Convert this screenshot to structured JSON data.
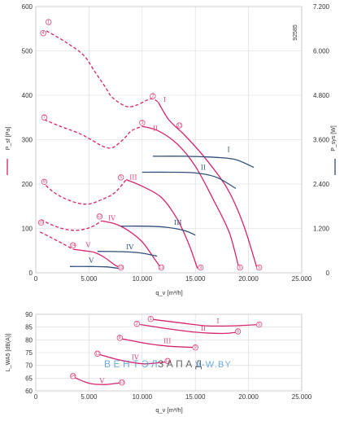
{
  "colors": {
    "pressure": "#d6246e",
    "power": "#2f4f7a",
    "grid": "#d9d9d9",
    "watermark_blue": "#3b8fd6",
    "watermark_grey": "#333333"
  },
  "watermark": {
    "part1": "ВЕНТЭЛ",
    "part2": "ЗАПАД",
    "part3": "V-W.BY"
  },
  "chart_data": [
    {
      "type": "line",
      "id": "pressure-power",
      "code": "92585",
      "xlabel": "q_v [m³/h]",
      "ylabel_left": "P_sf [Pa]",
      "ylabel_right": "P_sys [W]",
      "xlim": [
        0,
        25000
      ],
      "ylim_left": [
        0,
        600
      ],
      "ylim_right": [
        0,
        7200
      ],
      "x_ticks": [
        "0",
        "5.000",
        "10.000",
        "15.000",
        "20.000",
        "25.000"
      ],
      "y_ticks_left": [
        "0",
        "100",
        "200",
        "300",
        "400",
        "500",
        "600"
      ],
      "y_ticks_right": [
        "0",
        "1.200",
        "2.400",
        "3.600",
        "4.800",
        "6.000",
        "7.200"
      ],
      "grid": true,
      "pressure_curves": [
        {
          "name": "I",
          "stall": [
            [
              1000,
              545
            ],
            [
              2800,
              520
            ],
            [
              4500,
              490
            ],
            [
              5500,
              455
            ],
            [
              6500,
              420
            ],
            [
              7200,
              395
            ],
            [
              8500,
              375
            ],
            [
              9500,
              378
            ],
            [
              10800,
              392
            ],
            [
              11500,
              385
            ]
          ],
          "stable": [
            [
              11500,
              385
            ],
            [
              12500,
              345
            ],
            [
              14000,
              310
            ],
            [
              15800,
              262
            ],
            [
              18000,
              190
            ],
            [
              19500,
              110
            ],
            [
              20800,
              10
            ]
          ]
        },
        {
          "name": "II",
          "stall": [
            [
              800,
              345
            ],
            [
              2300,
              330
            ],
            [
              4000,
              315
            ],
            [
              5200,
              300
            ],
            [
              6300,
              285
            ],
            [
              7200,
              282
            ],
            [
              8200,
              300
            ],
            [
              9000,
              320
            ],
            [
              10000,
              330
            ]
          ],
          "stable": [
            [
              10000,
              330
            ],
            [
              11500,
              320
            ],
            [
              13300,
              290
            ],
            [
              15000,
              240
            ],
            [
              16800,
              160
            ],
            [
              18200,
              90
            ],
            [
              19100,
              10
            ]
          ]
        },
        {
          "name": "III",
          "stall": [
            [
              600,
              205
            ],
            [
              1500,
              185
            ],
            [
              2500,
              170
            ],
            [
              3800,
              158
            ],
            [
              5000,
              155
            ],
            [
              6200,
              165
            ],
            [
              7400,
              180
            ],
            [
              8500,
              210
            ]
          ],
          "stable": [
            [
              8500,
              210
            ],
            [
              10000,
              195
            ],
            [
              11800,
              170
            ],
            [
              13200,
              125
            ],
            [
              14300,
              70
            ],
            [
              15200,
              10
            ]
          ]
        },
        {
          "name": "IV",
          "stall": [
            [
              500,
              120
            ],
            [
              1500,
              108
            ],
            [
              2800,
              98
            ],
            [
              4000,
              96
            ],
            [
              5200,
              103
            ],
            [
              6200,
              117
            ]
          ],
          "stable": [
            [
              6200,
              117
            ],
            [
              7500,
              110
            ],
            [
              8700,
              95
            ],
            [
              10000,
              70
            ],
            [
              11200,
              30
            ],
            [
              11800,
              10
            ]
          ]
        },
        {
          "name": "V",
          "stall": [
            [
              400,
              92
            ],
            [
              1400,
              80
            ],
            [
              2500,
              66
            ],
            [
              3500,
              53
            ]
          ],
          "stable": [
            [
              3500,
              53
            ],
            [
              4500,
              50
            ],
            [
              5500,
              46
            ],
            [
              6500,
              34
            ],
            [
              7400,
              18
            ],
            [
              8100,
              10
            ]
          ]
        }
      ],
      "marker_points": [
        {
          "label": "1",
          "x": 1200,
          "y": 565
        },
        {
          "label": "4",
          "x": 700,
          "y": 540
        },
        {
          "label": "2",
          "x": 11000,
          "y": 398
        },
        {
          "label": "11",
          "x": 13500,
          "y": 332
        },
        {
          "label": "7",
          "x": 800,
          "y": 350
        },
        {
          "label": "3",
          "x": 10000,
          "y": 338
        },
        {
          "label": "8",
          "x": 800,
          "y": 205
        },
        {
          "label": "5",
          "x": 8000,
          "y": 215
        },
        {
          "label": "10",
          "x": 500,
          "y": 113
        },
        {
          "label": "12",
          "x": 6000,
          "y": 127
        },
        {
          "label": "14",
          "x": 3500,
          "y": 62
        },
        {
          "label": "13",
          "x": 8000,
          "y": 12
        },
        {
          "label": "12",
          "x": 11800,
          "y": 12
        },
        {
          "label": "9",
          "x": 15500,
          "y": 12
        },
        {
          "label": "6",
          "x": 19200,
          "y": 12
        },
        {
          "label": "5",
          "x": 21000,
          "y": 12
        }
      ],
      "power_curves": [
        {
          "name": "I",
          "points": [
            [
              11000,
              3150
            ],
            [
              14000,
              3150
            ],
            [
              17000,
              3120
            ],
            [
              18800,
              3060
            ],
            [
              20500,
              2850
            ]
          ]
        },
        {
          "name": "II",
          "points": [
            [
              10000,
              2720
            ],
            [
              12500,
              2720
            ],
            [
              15000,
              2700
            ],
            [
              17000,
              2580
            ],
            [
              18800,
              2280
            ]
          ]
        },
        {
          "name": "III",
          "points": [
            [
              8000,
              1260
            ],
            [
              10500,
              1260
            ],
            [
              12300,
              1230
            ],
            [
              14000,
              1140
            ],
            [
              15000,
              1020
            ]
          ]
        },
        {
          "name": "IV",
          "points": [
            [
              5800,
              580
            ],
            [
              8000,
              570
            ],
            [
              9800,
              540
            ],
            [
              11400,
              450
            ]
          ]
        },
        {
          "name": "V",
          "points": [
            [
              3200,
              170
            ],
            [
              5200,
              170
            ],
            [
              6600,
              160
            ],
            [
              7800,
              120
            ]
          ]
        }
      ],
      "series_labels": [
        {
          "text": "I",
          "x": 12000,
          "y": 385,
          "axis": "left",
          "color": "pressure"
        },
        {
          "text": "II",
          "x": 11000,
          "y": 320,
          "axis": "left",
          "color": "pressure"
        },
        {
          "text": "III",
          "x": 8800,
          "y": 210,
          "axis": "left",
          "color": "pressure"
        },
        {
          "text": "IV",
          "x": 6800,
          "y": 118,
          "axis": "left",
          "color": "pressure"
        },
        {
          "text": "V",
          "x": 4700,
          "y": 58,
          "axis": "left",
          "color": "pressure"
        },
        {
          "text": "I",
          "x": 18000,
          "y": 3270,
          "axis": "right",
          "color": "power"
        },
        {
          "text": "II",
          "x": 15500,
          "y": 2780,
          "axis": "right",
          "color": "power"
        },
        {
          "text": "III",
          "x": 13000,
          "y": 1300,
          "axis": "right",
          "color": "power"
        },
        {
          "text": "IV",
          "x": 8500,
          "y": 640,
          "axis": "right",
          "color": "power"
        },
        {
          "text": "V",
          "x": 5000,
          "y": 270,
          "axis": "right",
          "color": "power"
        }
      ]
    },
    {
      "type": "line",
      "id": "sound",
      "xlabel": "q_v [m³/h]",
      "ylabel": "L_WA5 [dB(A)]",
      "xlim": [
        0,
        25000
      ],
      "ylim": [
        60,
        90
      ],
      "x_ticks": [
        "0",
        "5.000",
        "10.000",
        "15.000",
        "20.000",
        "25.000"
      ],
      "y_ticks": [
        "60",
        "65",
        "70",
        "75",
        "80",
        "85",
        "90"
      ],
      "grid": true,
      "series": [
        {
          "name": "I",
          "points": [
            [
              11000,
              88
            ],
            [
              13500,
              86.7
            ],
            [
              16000,
              85.5
            ],
            [
              18500,
              85.5
            ],
            [
              21000,
              86
            ]
          ]
        },
        {
          "name": "II",
          "points": [
            [
              9800,
              86
            ],
            [
              12500,
              84.3
            ],
            [
              15000,
              83
            ],
            [
              17500,
              82.5
            ],
            [
              19000,
              83
            ]
          ]
        },
        {
          "name": "III",
          "points": [
            [
              8000,
              80.5
            ],
            [
              10500,
              78.5
            ],
            [
              12500,
              77.5
            ],
            [
              15000,
              77
            ]
          ]
        },
        {
          "name": "IV",
          "points": [
            [
              5800,
              74.5
            ],
            [
              8000,
              72
            ],
            [
              10200,
              70.6
            ],
            [
              12500,
              71.5
            ]
          ]
        },
        {
          "name": "V",
          "points": [
            [
              3500,
              65.5
            ],
            [
              5000,
              63
            ],
            [
              6500,
              62.5
            ],
            [
              8000,
              63.2
            ]
          ]
        }
      ],
      "marker_points": [
        {
          "label": "1",
          "x": 10800,
          "y": 88.2
        },
        {
          "label": "2",
          "x": 9500,
          "y": 86.3
        },
        {
          "label": "5",
          "x": 21000,
          "y": 86
        },
        {
          "label": "6",
          "x": 19000,
          "y": 83.3
        },
        {
          "label": "8",
          "x": 7900,
          "y": 80.8
        },
        {
          "label": "9",
          "x": 15000,
          "y": 77
        },
        {
          "label": "11",
          "x": 5800,
          "y": 74.6
        },
        {
          "label": "12",
          "x": 12400,
          "y": 71.7
        },
        {
          "label": "14",
          "x": 3500,
          "y": 65.8
        },
        {
          "label": "13",
          "x": 8100,
          "y": 63.3
        }
      ],
      "series_labels": [
        {
          "text": "I",
          "x": 17000,
          "y": 86.5
        },
        {
          "text": "II",
          "x": 15500,
          "y": 83.6
        },
        {
          "text": "III",
          "x": 12000,
          "y": 78.6
        },
        {
          "text": "IV",
          "x": 9000,
          "y": 72.3
        },
        {
          "text": "V",
          "x": 6000,
          "y": 63
        }
      ]
    }
  ]
}
